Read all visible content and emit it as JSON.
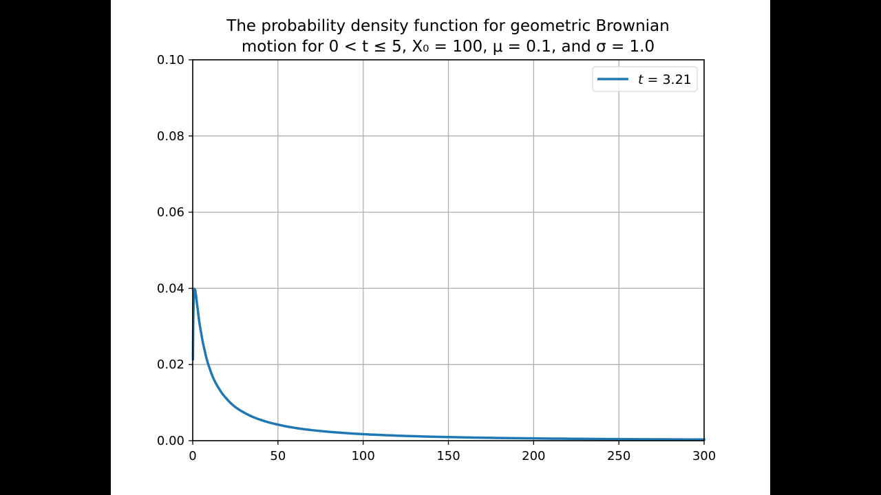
{
  "chart_data": {
    "type": "line",
    "title": "The probability density function for geometric Brownian motion for 0 < t ≤ 5, X₀ = 100, μ = 0.1, and σ = 1.0",
    "title_lines": [
      "The probability density function for geometric Brownian",
      "motion for 0 < t ≤ 5, X₀ = 100, μ = 0.1, and σ = 1.0"
    ],
    "xlabel": "",
    "ylabel": "",
    "xlim": [
      0,
      300
    ],
    "ylim": [
      0,
      0.1
    ],
    "xticks": [
      0,
      50,
      100,
      150,
      200,
      250,
      300
    ],
    "xtick_labels": [
      "0",
      "50",
      "100",
      "150",
      "200",
      "250",
      "300"
    ],
    "yticks": [
      0,
      0.02,
      0.04,
      0.06,
      0.08,
      0.1
    ],
    "ytick_labels": [
      "0.00",
      "0.02",
      "0.04",
      "0.06",
      "0.08",
      "0.10"
    ],
    "grid": true,
    "legend_position": "upper right",
    "series": [
      {
        "name": "t = 3.21",
        "color": "#1f77b4",
        "x": [
          0.15,
          0.2,
          0.3,
          0.5,
          1,
          1.5,
          2,
          3,
          5,
          7,
          10,
          15,
          20,
          30,
          40,
          50,
          75,
          100,
          125,
          150,
          200,
          250,
          300
        ],
        "y": [
          0.0214,
          0.0253,
          0.0306,
          0.0362,
          0.0399,
          0.0395,
          0.038,
          0.0344,
          0.0282,
          0.0237,
          0.0189,
          0.014,
          0.01095,
          0.00741,
          0.00545,
          0.00422,
          0.00254,
          0.00172,
          0.00125,
          0.00095,
          0.000606,
          0.000419,
          0.000307
        ]
      }
    ]
  },
  "legend": {
    "items": [
      {
        "var": "t",
        "eq": " = 3.21",
        "color": "#1f77b4"
      }
    ]
  },
  "style": {
    "line_color": "#1f77b4",
    "grid_color": "#b0b0b0",
    "axis_color": "#000000"
  }
}
